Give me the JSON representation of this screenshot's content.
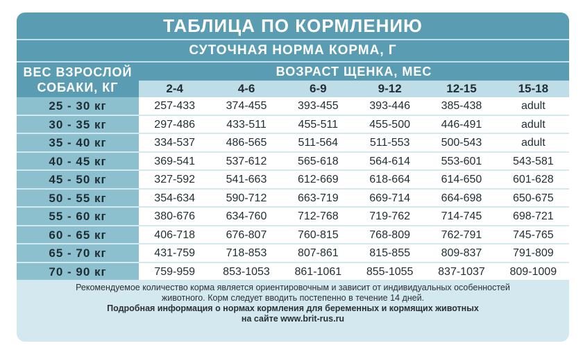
{
  "title": "ТАБЛИЦА ПО КОРМЛЕНИЮ",
  "subtitle": "СУТОЧНАЯ НОРМА КОРМА, Г",
  "weight_header_line1": "ВЕС ВЗРОСЛОЙ",
  "weight_header_line2": "СОБАКИ, КГ",
  "age_header": "ВОЗРАСТ ЩЕНКА, МЕС",
  "age_columns": [
    "2-4",
    "4-6",
    "6-9",
    "9-12",
    "12-15",
    "15-18"
  ],
  "rows": [
    {
      "weight": "25 - 30 кг",
      "values": [
        "257-433",
        "374-455",
        "393-455",
        "393-446",
        "385-438",
        "adult"
      ]
    },
    {
      "weight": "30 - 35 кг",
      "values": [
        "297-486",
        "433-511",
        "455-511",
        "455-500",
        "446-491",
        "adult"
      ]
    },
    {
      "weight": "35 - 40 кг",
      "values": [
        "334-537",
        "486-565",
        "511-564",
        "511-553",
        "500-543",
        "adult"
      ]
    },
    {
      "weight": "40 - 45 кг",
      "values": [
        "369-541",
        "537-612",
        "565-618",
        "564-614",
        "553-601",
        "543-581"
      ]
    },
    {
      "weight": "45 - 50 кг",
      "values": [
        "327-592",
        "541-663",
        "612-669",
        "618-664",
        "614-650",
        "601-628"
      ]
    },
    {
      "weight": "50 - 55 кг",
      "values": [
        "354-634",
        "590-712",
        "663-719",
        "669-714",
        "664-698",
        "650-675"
      ]
    },
    {
      "weight": "55 - 60 кг",
      "values": [
        "380-676",
        "634-760",
        "712-768",
        "719-762",
        "714-745",
        "698-721"
      ]
    },
    {
      "weight": "60 - 65 кг",
      "values": [
        "406-718",
        "676-807",
        "760-815",
        "768-809",
        "762-791",
        "745-765"
      ]
    },
    {
      "weight": "65 - 70 кг",
      "values": [
        "431-759",
        "718-853",
        "807-861",
        "815-855",
        "809-837",
        "791-809"
      ]
    },
    {
      "weight": "70 - 90 кг",
      "values": [
        "759-959",
        "853-1053",
        "861-1061",
        "855-1055",
        "837-1037",
        "809-1009"
      ]
    }
  ],
  "footer": {
    "line1": "Рекомендуемое количество корма является ориентировочным и зависит от индивидуальных особенностей",
    "line2": "животного. Корм следует вводить постепенно в течение 14 дней.",
    "line3": "Подробная информация о нормах кормления для беременных и кормящих животных",
    "line4": "на сайте www.brit-rus.ru"
  },
  "colors": {
    "header_band": "#5a9db3",
    "weight_column": "#8cc0cf",
    "age_subheader": "#bfdde6",
    "card_background": "#d3e9ef"
  }
}
